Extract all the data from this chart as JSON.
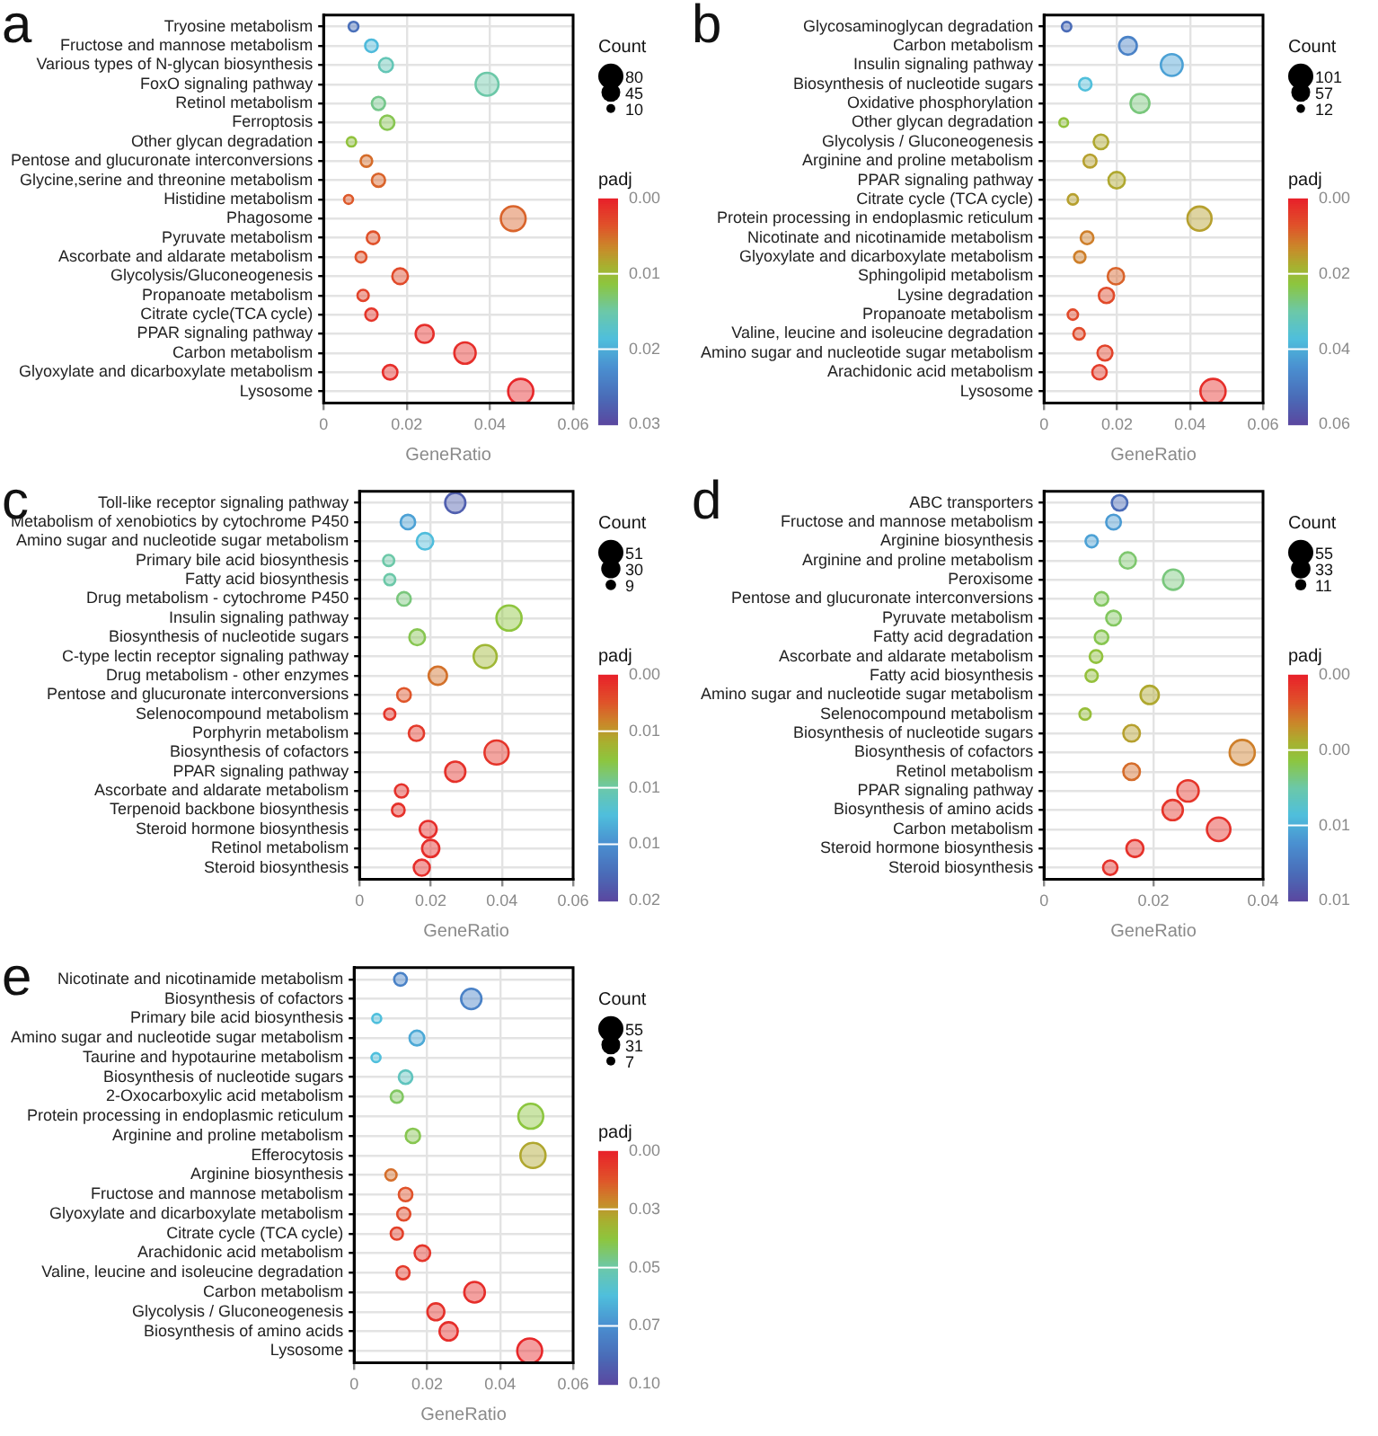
{
  "chart_data": [
    {
      "type": "bubble",
      "title": "a",
      "orientation": "horizontal",
      "xlabel": "GeneRatio",
      "xlim": [
        0,
        0.06
      ],
      "xticks": [
        0,
        0.02,
        0.04,
        0.06
      ],
      "grid": true,
      "legend_title": "Count",
      "size_legend": [
        80,
        45,
        10
      ],
      "clabel": "padj",
      "clim": [
        0.03,
        0
      ],
      "cticks": [
        {
          "value": 0,
          "label": "0.00"
        },
        {
          "value": 0.01,
          "label": "0.01"
        },
        {
          "value": 0.02,
          "label": "0.02"
        },
        {
          "value": 0.03,
          "label": "0.03"
        }
      ],
      "categories": [
        "Tryosine metabolism",
        "Fructose and mannose metabolism",
        "Various types of N-glycan biosynthesis",
        "FoxO signaling pathway",
        "Retinol metabolism",
        "Ferroptosis",
        "Other glycan degradation",
        "Pentose and glucuronate interconversions",
        "Glycine,serine and threonine metabolism",
        "Histidine metabolism",
        "Phagosome",
        "Pyruvate metabolism",
        "Ascorbate and aldarate metabolism",
        "Glycolysis/Gluconeogenesis",
        "Propanoate metabolism",
        "Citrate cycle(TCA cycle)",
        "PPAR signaling pathway",
        "Carbon metabolism",
        "Glyoxylate and dicarboxylate metabolism",
        "Lysosome"
      ],
      "values": [
        0.0072,
        0.0115,
        0.015,
        0.0393,
        0.0132,
        0.0153,
        0.0067,
        0.0103,
        0.0132,
        0.006,
        0.0456,
        0.0119,
        0.009,
        0.0184,
        0.0095,
        0.0115,
        0.0243,
        0.034,
        0.016,
        0.0474
      ],
      "sizes": [
        12,
        20,
        25,
        66,
        22,
        26,
        11,
        17,
        22,
        10,
        78,
        20,
        15,
        31,
        16,
        19,
        41,
        58,
        27,
        80
      ],
      "cvalues": [
        0.026,
        0.019,
        0.016,
        0.015,
        0.014,
        0.012,
        0.011,
        0.005,
        0.0045,
        0.004,
        0.0045,
        0.0035,
        0.0035,
        0.003,
        0.0025,
        0.0015,
        0.001,
        0.001,
        0.001,
        0.0005
      ]
    },
    {
      "type": "bubble",
      "title": "b",
      "orientation": "horizontal",
      "xlabel": "GeneRatio",
      "xlim": [
        0,
        0.06
      ],
      "xticks": [
        0,
        0.02,
        0.04,
        0.06
      ],
      "grid": true,
      "legend_title": "Count",
      "size_legend": [
        101,
        57,
        12
      ],
      "clabel": "padj",
      "clim": [
        0.06,
        0
      ],
      "cticks": [
        {
          "value": 0,
          "label": "0.00"
        },
        {
          "value": 0.02,
          "label": "0.02"
        },
        {
          "value": 0.04,
          "label": "0.04"
        },
        {
          "value": 0.06,
          "label": "0.06"
        }
      ],
      "categories": [
        "Glycosaminoglycan degradation",
        "Carbon metabolism",
        "Insulin signaling pathway",
        "Biosynthesis of nucleotide sugars",
        "Oxidative phosphorylation",
        "Other glycan degradation",
        "Glycolysis / Gluconeogenesis",
        "Arginine and proline metabolism",
        "PPAR signaling pathway",
        "Citrate cycle (TCA cycle)",
        "Protein processing in endoplasmic reticulum",
        "Nicotinate and nicotinamide metabolism",
        "Glyoxylate and dicarboxylate metabolism",
        "Sphingolipid metabolism",
        "Lysine degradation",
        "Propanoate metabolism",
        "Valine, leucine and isoleucine degradation",
        "Amino sugar and nucleotide sugar metabolism",
        "Arachidonic acid metabolism",
        "Lysosome"
      ],
      "values": [
        0.0062,
        0.023,
        0.035,
        0.0113,
        0.0263,
        0.0054,
        0.0156,
        0.0126,
        0.0199,
        0.0079,
        0.0426,
        0.0118,
        0.0098,
        0.0197,
        0.0171,
        0.0079,
        0.0096,
        0.0167,
        0.0152,
        0.0463
      ],
      "sizes": [
        14,
        50,
        76,
        25,
        57,
        12,
        34,
        27,
        43,
        17,
        93,
        26,
        21,
        43,
        37,
        17,
        21,
        36,
        33,
        101
      ],
      "cvalues": [
        0.053,
        0.048,
        0.042,
        0.037,
        0.027,
        0.022,
        0.017,
        0.016,
        0.017,
        0.016,
        0.016,
        0.012,
        0.012,
        0.009,
        0.006,
        0.006,
        0.006,
        0.005,
        0.004,
        0.002
      ]
    },
    {
      "type": "bubble",
      "title": "c",
      "orientation": "horizontal",
      "xlabel": "GeneRatio",
      "xlim": [
        0,
        0.06
      ],
      "xticks": [
        0,
        0.02,
        0.04,
        0.06
      ],
      "grid": true,
      "legend_title": "Count",
      "size_legend": [
        51,
        30,
        9
      ],
      "clabel": "padj",
      "clim": [
        0.02,
        0
      ],
      "cticks": [
        {
          "value": 0,
          "label": "0.00"
        },
        {
          "value": 0.005,
          "label": "0.01"
        },
        {
          "value": 0.01,
          "label": "0.01"
        },
        {
          "value": 0.015,
          "label": "0.01"
        },
        {
          "value": 0.02,
          "label": "0.02"
        }
      ],
      "categories": [
        "Toll-like receptor signaling pathway",
        "Metabolism of xenobiotics by cytochrome P450",
        "Amino sugar and nucleotide sugar metabolism",
        "Primary bile acid biosynthesis",
        "Fatty acid biosynthesis",
        "Drug metabolism - cytochrome P450",
        "Insulin signaling pathway",
        "Biosynthesis of nucleotide sugars",
        "C-type lectin receptor signaling pathway",
        "Drug metabolism - other enzymes",
        "Pentose and glucuronate interconversions",
        "Selenocompound metabolism",
        "Porphyrin metabolism",
        "Biosynthesis of cofactors",
        "PPAR signaling pathway",
        "Ascorbate and aldarate metabolism",
        "Terpenoid backbone biosynthesis",
        "Steroid hormone biosynthesis",
        "Retinol metabolism",
        "Steroid biosynthesis"
      ],
      "values": [
        0.0269,
        0.0136,
        0.0184,
        0.0082,
        0.0085,
        0.0125,
        0.042,
        0.0162,
        0.0353,
        0.022,
        0.0125,
        0.0085,
        0.016,
        0.0385,
        0.0269,
        0.0118,
        0.0109,
        0.0193,
        0.02,
        0.0175
      ],
      "sizes": [
        33,
        17,
        22,
        10,
        10,
        15,
        51,
        20,
        43,
        27,
        15,
        10,
        19,
        47,
        33,
        14,
        13,
        23,
        24,
        21
      ],
      "cvalues": [
        0.0185,
        0.014,
        0.0125,
        0.01,
        0.01,
        0.009,
        0.0075,
        0.008,
        0.0065,
        0.0035,
        0.0025,
        0.001,
        0.0012,
        0.001,
        0.0008,
        0.0008,
        0.0008,
        0.0006,
        0.0006,
        0.0006
      ]
    },
    {
      "type": "bubble",
      "title": "d",
      "orientation": "horizontal",
      "xlabel": "GeneRatio",
      "xlim": [
        0,
        0.04
      ],
      "xticks": [
        0,
        0.02,
        0.04
      ],
      "grid": true,
      "legend_title": "Count",
      "size_legend": [
        55,
        33,
        11
      ],
      "clabel": "padj",
      "clim": [
        0.012,
        0
      ],
      "cticks": [
        {
          "value": 0,
          "label": "0.00"
        },
        {
          "value": 0.004,
          "label": "0.00"
        },
        {
          "value": 0.008,
          "label": "0.01"
        },
        {
          "value": 0.012,
          "label": "0.01"
        }
      ],
      "categories": [
        "ABC transporters",
        "Fructose and mannose metabolism",
        "Arginine biosynthesis",
        "Arginine and proline metabolism",
        "Peroxisome",
        "Pentose and glucuronate interconversions",
        "Pyruvate metabolism",
        "Fatty acid degradation",
        "Ascorbate and aldarate metabolism",
        "Fatty acid biosynthesis",
        "Amino sugar and nucleotide sugar metabolism",
        "Selenocompound metabolism",
        "Biosynthesis of nucleotide sugars",
        "Biosynthesis of cofactors",
        "Retinol metabolism",
        "PPAR signaling pathway",
        "Biosynthesis of amino acids",
        "Carbon metabolism",
        "Steroid hormone biosynthesis",
        "Steroid biosynthesis"
      ],
      "values": [
        0.0138,
        0.0127,
        0.0087,
        0.0153,
        0.0236,
        0.0105,
        0.0127,
        0.0105,
        0.0095,
        0.0087,
        0.0193,
        0.0075,
        0.016,
        0.0362,
        0.016,
        0.0263,
        0.0235,
        0.0319,
        0.0166,
        0.0121
      ],
      "sizes": [
        21,
        19,
        13,
        23,
        36,
        16,
        19,
        16,
        14,
        13,
        29,
        11,
        24,
        55,
        24,
        40,
        36,
        48,
        25,
        18
      ],
      "cvalues": [
        0.0106,
        0.0086,
        0.0084,
        0.0052,
        0.0054,
        0.005,
        0.005,
        0.0048,
        0.0044,
        0.0043,
        0.0034,
        0.0042,
        0.0032,
        0.0024,
        0.002,
        0.0006,
        0.0006,
        0.0005,
        0.0005,
        0.0005
      ]
    },
    {
      "type": "bubble",
      "title": "e",
      "orientation": "horizontal",
      "xlabel": "GeneRatio",
      "xlim": [
        0,
        0.06
      ],
      "xticks": [
        0,
        0.02,
        0.04,
        0.06
      ],
      "grid": true,
      "legend_title": "Count",
      "size_legend": [
        55,
        31,
        7
      ],
      "clabel": "padj",
      "clim": [
        0.1,
        0
      ],
      "cticks": [
        {
          "value": 0,
          "label": "0.00"
        },
        {
          "value": 0.025,
          "label": "0.03"
        },
        {
          "value": 0.05,
          "label": "0.05"
        },
        {
          "value": 0.075,
          "label": "0.07"
        },
        {
          "value": 0.1,
          "label": "0.10"
        }
      ],
      "categories": [
        "Nicotinate and nicotinamide metabolism",
        "Biosynthesis of cofactors",
        "Primary bile acid biosynthesis",
        "Amino sugar and nucleotide sugar metabolism",
        "Taurine and hypotaurine metabolism",
        "Biosynthesis of nucleotide sugars",
        "2-Oxocarboxylic acid metabolism",
        "Protein processing in endoplasmic reticulum",
        "Arginine and proline metabolism",
        "Efferocytosis",
        "Arginine biosynthesis",
        "Fructose and mannose metabolism",
        "Glyoxylate and dicarboxylate metabolism",
        "Citrate cycle (TCA cycle)",
        "Arachidonic acid metabolism",
        "Valine, leucine and isoleucine degradation",
        "Carbon metabolism",
        "Glycolysis / Gluconeogenesis",
        "Biosynthesis of amino acids",
        "Lysosome"
      ],
      "values": [
        0.0127,
        0.0321,
        0.0062,
        0.0172,
        0.006,
        0.0141,
        0.0117,
        0.0484,
        0.0161,
        0.049,
        0.0101,
        0.0141,
        0.0136,
        0.0117,
        0.0187,
        0.0134,
        0.033,
        0.0224,
        0.0259,
        0.0481
      ],
      "sizes": [
        14,
        36,
        7,
        19,
        7,
        16,
        13,
        54,
        18,
        55,
        11,
        16,
        15,
        13,
        21,
        15,
        37,
        25,
        29,
        54
      ],
      "cvalues": [
        0.08,
        0.08,
        0.062,
        0.068,
        0.062,
        0.055,
        0.042,
        0.038,
        0.04,
        0.028,
        0.017,
        0.012,
        0.01,
        0.008,
        0.005,
        0.006,
        0.003,
        0.004,
        0.003,
        0.002
      ]
    }
  ]
}
